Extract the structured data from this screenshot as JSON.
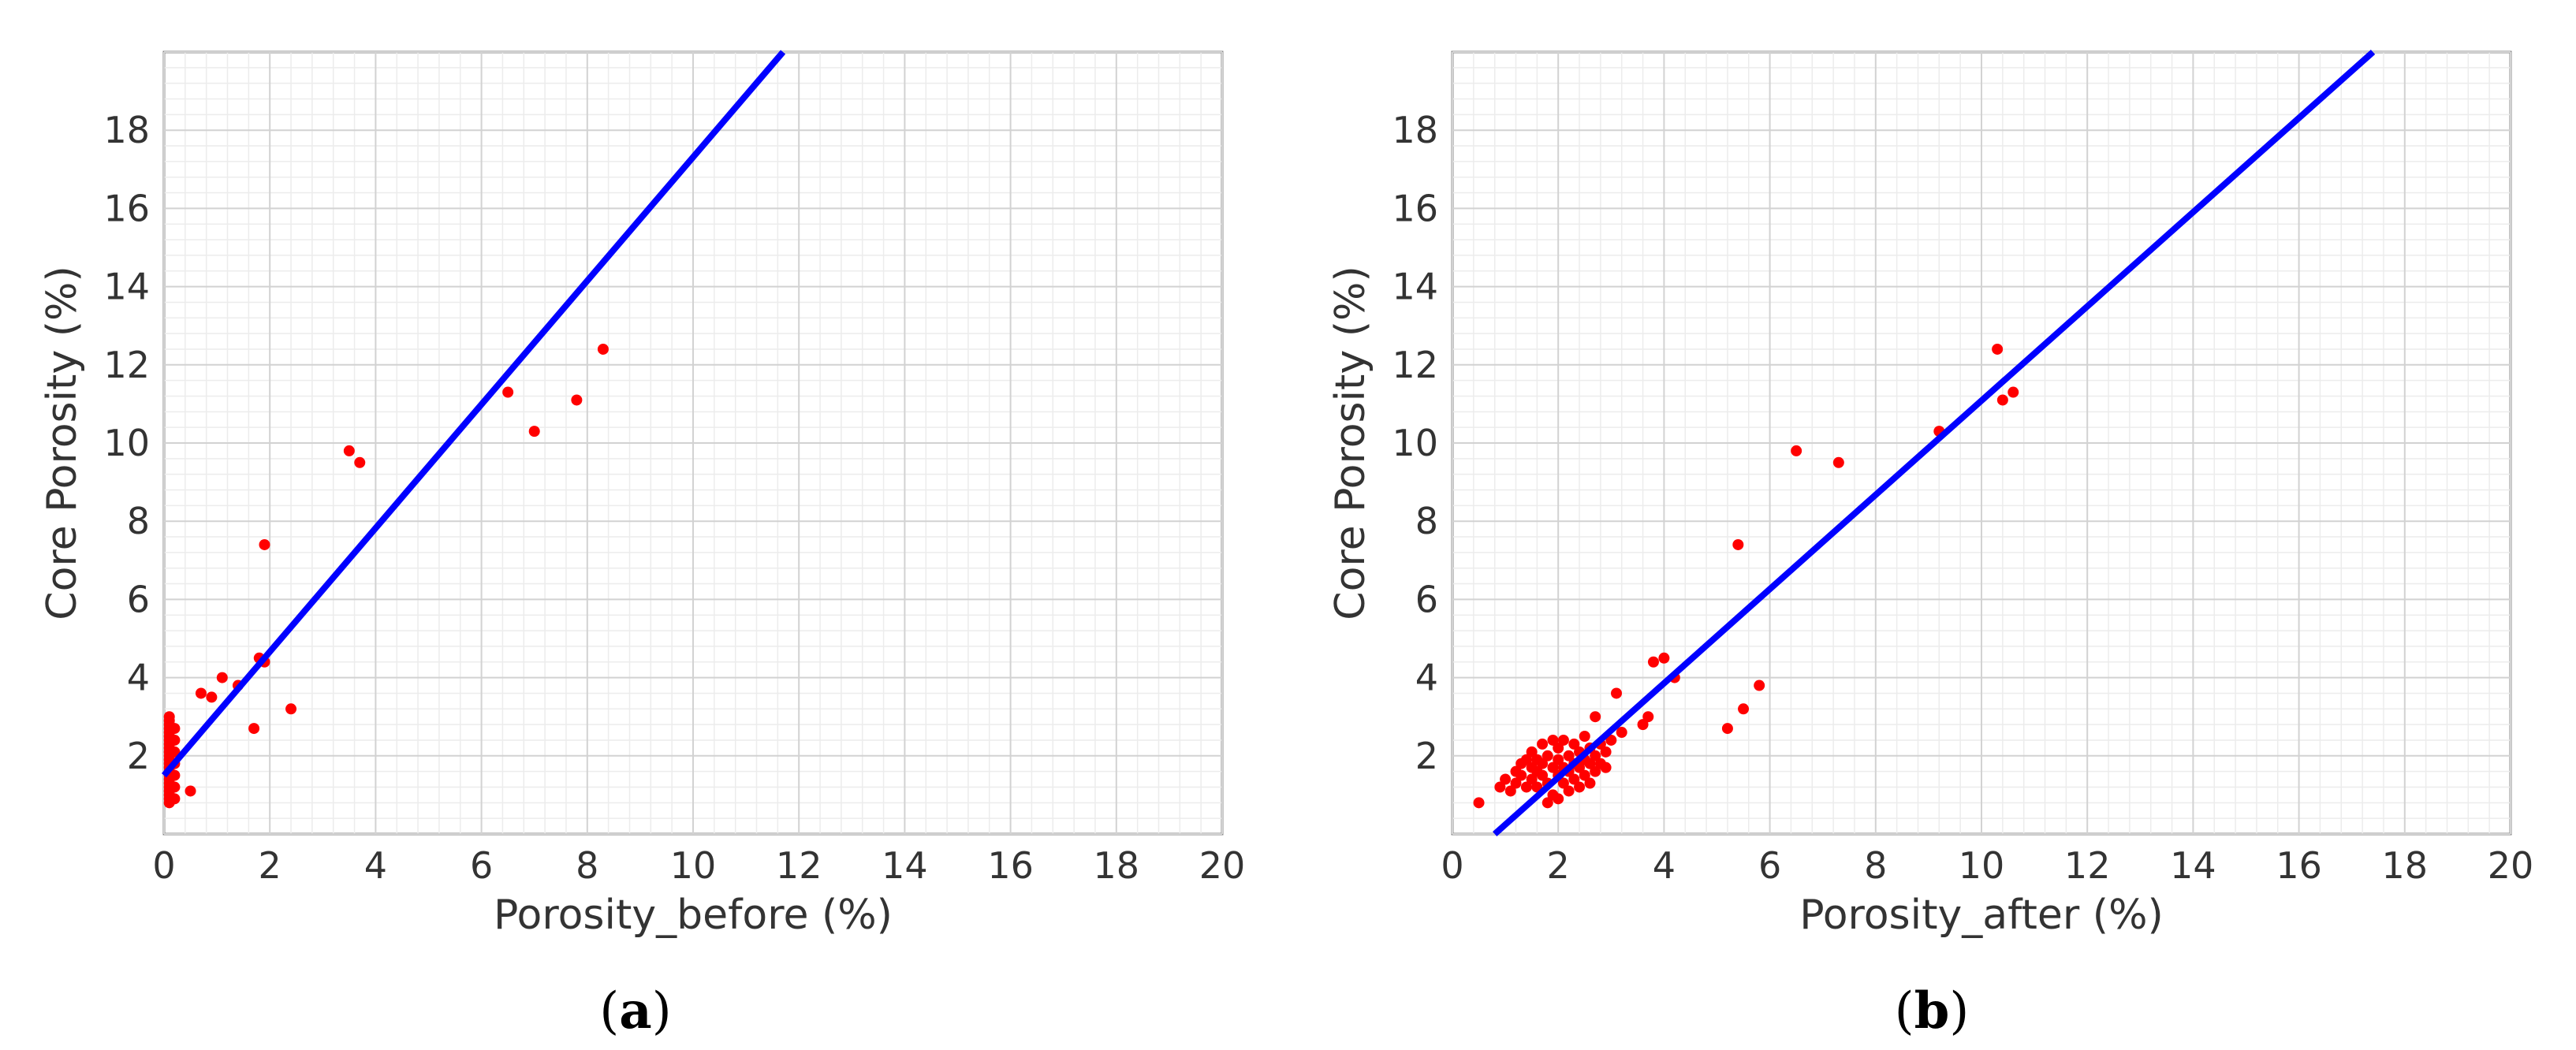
{
  "chart_data": [
    {
      "type": "scatter",
      "panel": "a",
      "caption_letter": "a",
      "xlabel": "Porosity_before (%)",
      "ylabel": "Core Porosity (%)",
      "xlim": [
        0,
        20
      ],
      "ylim": [
        0,
        20
      ],
      "xticks": [
        0,
        2,
        4,
        6,
        8,
        10,
        12,
        14,
        16,
        18,
        20
      ],
      "yticks": [
        2,
        4,
        6,
        8,
        10,
        12,
        14,
        16,
        18
      ],
      "grid": true,
      "point_color": "#ff0000",
      "line_color": "#0000ff",
      "fit_line": [
        [
          0.0,
          1.5
        ],
        [
          11.7,
          20.0
        ]
      ],
      "points": [
        [
          0.1,
          0.8
        ],
        [
          0.1,
          0.9
        ],
        [
          0.1,
          1.0
        ],
        [
          0.1,
          1.1
        ],
        [
          0.1,
          1.2
        ],
        [
          0.1,
          1.3
        ],
        [
          0.1,
          1.4
        ],
        [
          0.1,
          1.5
        ],
        [
          0.1,
          1.6
        ],
        [
          0.1,
          1.7
        ],
        [
          0.1,
          1.8
        ],
        [
          0.1,
          1.9
        ],
        [
          0.1,
          2.0
        ],
        [
          0.1,
          2.1
        ],
        [
          0.1,
          2.2
        ],
        [
          0.1,
          2.3
        ],
        [
          0.1,
          2.4
        ],
        [
          0.1,
          2.5
        ],
        [
          0.1,
          2.6
        ],
        [
          0.1,
          2.7
        ],
        [
          0.1,
          2.8
        ],
        [
          0.1,
          2.9
        ],
        [
          0.1,
          3.0
        ],
        [
          0.2,
          0.9
        ],
        [
          0.2,
          1.2
        ],
        [
          0.2,
          1.5
        ],
        [
          0.2,
          1.8
        ],
        [
          0.2,
          2.1
        ],
        [
          0.2,
          2.4
        ],
        [
          0.2,
          2.7
        ],
        [
          0.5,
          1.1
        ],
        [
          0.7,
          3.6
        ],
        [
          0.9,
          3.5
        ],
        [
          1.1,
          4.0
        ],
        [
          1.4,
          3.8
        ],
        [
          1.7,
          2.7
        ],
        [
          1.8,
          4.5
        ],
        [
          1.9,
          4.4
        ],
        [
          1.9,
          7.4
        ],
        [
          2.4,
          3.2
        ],
        [
          3.5,
          9.8
        ],
        [
          3.7,
          9.5
        ],
        [
          6.5,
          11.3
        ],
        [
          7.0,
          10.3
        ],
        [
          7.8,
          11.1
        ],
        [
          8.3,
          12.4
        ]
      ]
    },
    {
      "type": "scatter",
      "panel": "b",
      "caption_letter": "b",
      "xlabel": "Porosity_after (%)",
      "ylabel": "Core Porosity (%)",
      "xlim": [
        0,
        20
      ],
      "ylim": [
        0,
        20
      ],
      "xticks": [
        0,
        2,
        4,
        6,
        8,
        10,
        12,
        14,
        16,
        18,
        20
      ],
      "yticks": [
        2,
        4,
        6,
        8,
        10,
        12,
        14,
        16,
        18
      ],
      "grid": true,
      "point_color": "#ff0000",
      "line_color": "#0000ff",
      "fit_line": [
        [
          0.8,
          0.0
        ],
        [
          17.4,
          20.0
        ]
      ],
      "points": [
        [
          0.5,
          0.8
        ],
        [
          0.9,
          1.2
        ],
        [
          1.0,
          1.4
        ],
        [
          1.1,
          1.1
        ],
        [
          1.2,
          1.6
        ],
        [
          1.2,
          1.3
        ],
        [
          1.3,
          1.8
        ],
        [
          1.3,
          1.5
        ],
        [
          1.4,
          1.2
        ],
        [
          1.4,
          1.9
        ],
        [
          1.5,
          1.7
        ],
        [
          1.5,
          1.4
        ],
        [
          1.5,
          2.1
        ],
        [
          1.6,
          1.6
        ],
        [
          1.6,
          1.9
        ],
        [
          1.6,
          1.2
        ],
        [
          1.7,
          2.3
        ],
        [
          1.7,
          1.5
        ],
        [
          1.7,
          1.8
        ],
        [
          1.8,
          2.0
        ],
        [
          1.8,
          1.3
        ],
        [
          1.8,
          0.8
        ],
        [
          1.9,
          1.7
        ],
        [
          1.9,
          2.4
        ],
        [
          1.9,
          1.0
        ],
        [
          2.0,
          1.5
        ],
        [
          2.0,
          1.9
        ],
        [
          2.0,
          2.2
        ],
        [
          2.0,
          0.9
        ],
        [
          2.1,
          1.3
        ],
        [
          2.1,
          1.7
        ],
        [
          2.1,
          2.4
        ],
        [
          2.2,
          1.1
        ],
        [
          2.2,
          1.6
        ],
        [
          2.2,
          2.0
        ],
        [
          2.3,
          1.4
        ],
        [
          2.3,
          1.8
        ],
        [
          2.3,
          2.3
        ],
        [
          2.4,
          1.2
        ],
        [
          2.4,
          1.7
        ],
        [
          2.4,
          2.1
        ],
        [
          2.5,
          1.5
        ],
        [
          2.5,
          1.9
        ],
        [
          2.5,
          2.5
        ],
        [
          2.6,
          1.3
        ],
        [
          2.6,
          1.8
        ],
        [
          2.6,
          2.2
        ],
        [
          2.7,
          1.6
        ],
        [
          2.7,
          2.0
        ],
        [
          2.7,
          3.0
        ],
        [
          2.8,
          1.8
        ],
        [
          2.8,
          2.3
        ],
        [
          2.9,
          1.7
        ],
        [
          2.9,
          2.1
        ],
        [
          3.0,
          2.4
        ],
        [
          3.1,
          3.6
        ],
        [
          3.2,
          2.6
        ],
        [
          3.6,
          2.8
        ],
        [
          3.7,
          3.0
        ],
        [
          3.8,
          4.4
        ],
        [
          4.0,
          4.5
        ],
        [
          4.2,
          4.0
        ],
        [
          5.2,
          2.7
        ],
        [
          5.4,
          7.4
        ],
        [
          5.5,
          3.2
        ],
        [
          5.8,
          3.8
        ],
        [
          6.5,
          9.8
        ],
        [
          7.3,
          9.5
        ],
        [
          9.2,
          10.3
        ],
        [
          10.3,
          12.4
        ],
        [
          10.4,
          11.1
        ],
        [
          10.6,
          11.3
        ]
      ]
    }
  ]
}
